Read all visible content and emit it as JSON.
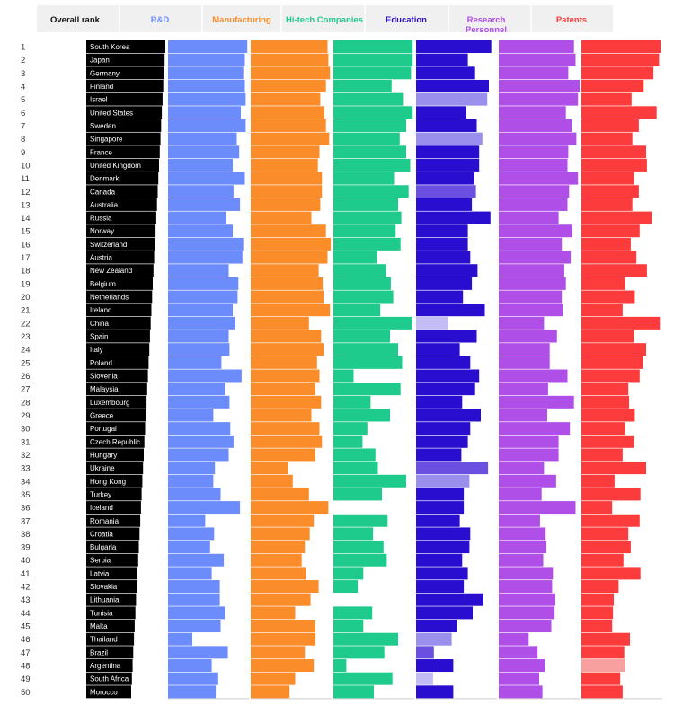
{
  "chart_data": {
    "type": "bar",
    "rank_header": "Overall rank",
    "columns": [
      {
        "key": "rd",
        "label": "R&D",
        "color": "#6b8cfa"
      },
      {
        "key": "mfg",
        "label": "Manufacturing",
        "color": "#fb8c2a"
      },
      {
        "key": "hitech",
        "label": "Hi-tech Companies",
        "color": "#1ecb8c"
      },
      {
        "key": "edu",
        "label": "Education",
        "color": "#2a0ed0"
      },
      {
        "key": "research",
        "label": "Research Personnel",
        "color": "#b04ee8"
      },
      {
        "key": "patents",
        "label": "Patents",
        "color": "#fc3c3c"
      }
    ],
    "faded_colors": {
      "edu": [
        "#9a8fec",
        "#6a4fe0",
        "#c4bcf4"
      ],
      "patents": [
        "#f8a0a0"
      ]
    },
    "countries": [
      {
        "rank": 1,
        "name": "South Korea",
        "rd": 0.98,
        "mfg": 0.95,
        "hitech": 0.98,
        "edu": 0.93,
        "research": 0.93,
        "patents": 0.98,
        "style": {}
      },
      {
        "rank": 2,
        "name": "Japan",
        "rd": 0.95,
        "mfg": 0.96,
        "hitech": 0.98,
        "edu": 0.64,
        "research": 0.95,
        "patents": 0.96,
        "style": {}
      },
      {
        "rank": 3,
        "name": "Germany",
        "rd": 0.93,
        "mfg": 0.98,
        "hitech": 0.96,
        "edu": 0.73,
        "research": 0.86,
        "patents": 0.89,
        "style": {}
      },
      {
        "rank": 4,
        "name": "Finland",
        "rd": 0.95,
        "mfg": 0.93,
        "hitech": 0.72,
        "edu": 0.9,
        "research": 1.0,
        "patents": 0.77,
        "style": {}
      },
      {
        "rank": 5,
        "name": "Israel",
        "rd": 0.96,
        "mfg": 0.86,
        "hitech": 0.86,
        "edu": 0.88,
        "research": 0.98,
        "patents": 0.62,
        "style": {
          "edu": "faded"
        }
      },
      {
        "rank": 6,
        "name": "United States",
        "rd": 0.9,
        "mfg": 0.91,
        "hitech": 0.98,
        "edu": 0.62,
        "research": 0.83,
        "patents": 0.93,
        "style": {}
      },
      {
        "rank": 7,
        "name": "Sweden",
        "rd": 0.96,
        "mfg": 0.93,
        "hitech": 0.9,
        "edu": 0.75,
        "research": 0.9,
        "patents": 0.71,
        "style": {}
      },
      {
        "rank": 8,
        "name": "Singapore",
        "rd": 0.85,
        "mfg": 0.97,
        "hitech": 0.82,
        "edu": 0.82,
        "research": 0.96,
        "patents": 0.63,
        "style": {
          "edu": "faded"
        }
      },
      {
        "rank": 9,
        "name": "France",
        "rd": 0.88,
        "mfg": 0.85,
        "hitech": 0.9,
        "edu": 0.78,
        "research": 0.86,
        "patents": 0.8,
        "style": {}
      },
      {
        "rank": 10,
        "name": "United Kingdom",
        "rd": 0.8,
        "mfg": 0.83,
        "hitech": 0.95,
        "edu": 0.78,
        "research": 0.85,
        "patents": 0.81,
        "style": {}
      },
      {
        "rank": 11,
        "name": "Denmark",
        "rd": 0.95,
        "mfg": 0.88,
        "hitech": 0.75,
        "edu": 0.72,
        "research": 0.98,
        "patents": 0.65,
        "style": {}
      },
      {
        "rank": 12,
        "name": "Canada",
        "rd": 0.81,
        "mfg": 0.88,
        "hitech": 0.93,
        "edu": 0.74,
        "research": 0.87,
        "patents": 0.71,
        "style": {
          "edu": "semi"
        }
      },
      {
        "rank": 13,
        "name": "Australia",
        "rd": 0.89,
        "mfg": 0.86,
        "hitech": 0.8,
        "edu": 0.69,
        "research": 0.85,
        "patents": 0.63,
        "style": {}
      },
      {
        "rank": 14,
        "name": "Russia",
        "rd": 0.72,
        "mfg": 0.75,
        "hitech": 0.84,
        "edu": 0.92,
        "research": 0.74,
        "patents": 0.87,
        "style": {}
      },
      {
        "rank": 15,
        "name": "Norway",
        "rd": 0.8,
        "mfg": 0.93,
        "hitech": 0.77,
        "edu": 0.64,
        "research": 0.91,
        "patents": 0.72,
        "style": {}
      },
      {
        "rank": 16,
        "name": "Switzerland",
        "rd": 0.93,
        "mfg": 0.99,
        "hitech": 0.83,
        "edu": 0.64,
        "research": 0.78,
        "patents": 0.61,
        "style": {}
      },
      {
        "rank": 17,
        "name": "Austria",
        "rd": 0.92,
        "mfg": 0.95,
        "hitech": 0.54,
        "edu": 0.67,
        "research": 0.89,
        "patents": 0.68,
        "style": {}
      },
      {
        "rank": 18,
        "name": "New Zealand",
        "rd": 0.75,
        "mfg": 0.84,
        "hitech": 0.65,
        "edu": 0.76,
        "research": 0.81,
        "patents": 0.81,
        "style": {}
      },
      {
        "rank": 19,
        "name": "Belgium",
        "rd": 0.87,
        "mfg": 0.89,
        "hitech": 0.71,
        "edu": 0.69,
        "research": 0.83,
        "patents": 0.54,
        "style": {}
      },
      {
        "rank": 20,
        "name": "Netherlands",
        "rd": 0.86,
        "mfg": 0.9,
        "hitech": 0.74,
        "edu": 0.58,
        "research": 0.78,
        "patents": 0.66,
        "style": {}
      },
      {
        "rank": 21,
        "name": "Ireland",
        "rd": 0.8,
        "mfg": 0.98,
        "hitech": 0.58,
        "edu": 0.85,
        "research": 0.79,
        "patents": 0.51,
        "style": {}
      },
      {
        "rank": 22,
        "name": "China",
        "rd": 0.83,
        "mfg": 0.72,
        "hitech": 0.97,
        "edu": 0.4,
        "research": 0.56,
        "patents": 0.97,
        "style": {
          "edu": "faint"
        }
      },
      {
        "rank": 23,
        "name": "Spain",
        "rd": 0.75,
        "mfg": 0.87,
        "hitech": 0.7,
        "edu": 0.75,
        "research": 0.72,
        "patents": 0.65,
        "style": {}
      },
      {
        "rank": 24,
        "name": "Italy",
        "rd": 0.76,
        "mfg": 0.9,
        "hitech": 0.8,
        "edu": 0.54,
        "research": 0.63,
        "patents": 0.8,
        "style": {}
      },
      {
        "rank": 25,
        "name": "Poland",
        "rd": 0.66,
        "mfg": 0.82,
        "hitech": 0.85,
        "edu": 0.67,
        "research": 0.63,
        "patents": 0.76,
        "style": {}
      },
      {
        "rank": 26,
        "name": "Slovenia",
        "rd": 0.91,
        "mfg": 0.85,
        "hitech": 0.25,
        "edu": 0.78,
        "research": 0.85,
        "patents": 0.72,
        "style": {}
      },
      {
        "rank": 27,
        "name": "Malaysia",
        "rd": 0.7,
        "mfg": 0.8,
        "hitech": 0.83,
        "edu": 0.73,
        "research": 0.61,
        "patents": 0.58,
        "style": {}
      },
      {
        "rank": 28,
        "name": "Luxembourg",
        "rd": 0.76,
        "mfg": 0.87,
        "hitech": 0.46,
        "edu": 0.57,
        "research": 0.93,
        "patents": 0.59,
        "style": {}
      },
      {
        "rank": 29,
        "name": "Greece",
        "rd": 0.56,
        "mfg": 0.75,
        "hitech": 0.7,
        "edu": 0.8,
        "research": 0.6,
        "patents": 0.66,
        "style": {}
      },
      {
        "rank": 30,
        "name": "Portugal",
        "rd": 0.77,
        "mfg": 0.85,
        "hitech": 0.42,
        "edu": 0.67,
        "research": 0.88,
        "patents": 0.54,
        "style": {}
      },
      {
        "rank": 31,
        "name": "Czech Republic",
        "rd": 0.81,
        "mfg": 0.88,
        "hitech": 0.36,
        "edu": 0.64,
        "research": 0.74,
        "patents": 0.65,
        "style": {}
      },
      {
        "rank": 32,
        "name": "Hungary",
        "rd": 0.75,
        "mfg": 0.8,
        "hitech": 0.52,
        "edu": 0.56,
        "research": 0.74,
        "patents": 0.51,
        "style": {}
      },
      {
        "rank": 33,
        "name": "Ukraine",
        "rd": 0.58,
        "mfg": 0.46,
        "hitech": 0.55,
        "edu": 0.89,
        "research": 0.56,
        "patents": 0.8,
        "style": {
          "edu": "semi"
        }
      },
      {
        "rank": 34,
        "name": "Hong Kong",
        "rd": 0.56,
        "mfg": 0.52,
        "hitech": 0.9,
        "edu": 0.66,
        "research": 0.71,
        "patents": 0.41,
        "style": {
          "edu": "faded"
        }
      },
      {
        "rank": 35,
        "name": "Turkey",
        "rd": 0.65,
        "mfg": 0.72,
        "hitech": 0.6,
        "edu": 0.59,
        "research": 0.53,
        "patents": 0.73,
        "style": {}
      },
      {
        "rank": 36,
        "name": "Iceland",
        "rd": 0.89,
        "mfg": 0.96,
        "hitech": 0.0,
        "edu": 0.59,
        "research": 0.95,
        "patents": 0.38,
        "style": {}
      },
      {
        "rank": 37,
        "name": "Romania",
        "rd": 0.46,
        "mfg": 0.78,
        "hitech": 0.67,
        "edu": 0.54,
        "research": 0.51,
        "patents": 0.72,
        "style": {}
      },
      {
        "rank": 38,
        "name": "Croatia",
        "rd": 0.57,
        "mfg": 0.73,
        "hitech": 0.49,
        "edu": 0.67,
        "research": 0.58,
        "patents": 0.58,
        "style": {}
      },
      {
        "rank": 39,
        "name": "Bulgaria",
        "rd": 0.52,
        "mfg": 0.67,
        "hitech": 0.62,
        "edu": 0.66,
        "research": 0.59,
        "patents": 0.61,
        "style": {}
      },
      {
        "rank": 40,
        "name": "Serbia",
        "rd": 0.69,
        "mfg": 0.63,
        "hitech": 0.66,
        "edu": 0.57,
        "research": 0.55,
        "patents": 0.52,
        "style": {}
      },
      {
        "rank": 41,
        "name": "Latvia",
        "rd": 0.54,
        "mfg": 0.68,
        "hitech": 0.37,
        "edu": 0.64,
        "research": 0.67,
        "patents": 0.73,
        "style": {}
      },
      {
        "rank": 42,
        "name": "Slovakia",
        "rd": 0.64,
        "mfg": 0.84,
        "hitech": 0.3,
        "edu": 0.59,
        "research": 0.66,
        "patents": 0.46,
        "style": {}
      },
      {
        "rank": 43,
        "name": "Lithuania",
        "rd": 0.64,
        "mfg": 0.74,
        "hitech": 0.0,
        "edu": 0.83,
        "research": 0.7,
        "patents": 0.4,
        "style": {}
      },
      {
        "rank": 44,
        "name": "Tunisia",
        "rd": 0.7,
        "mfg": 0.55,
        "hitech": 0.48,
        "edu": 0.7,
        "research": 0.69,
        "patents": 0.39,
        "style": {}
      },
      {
        "rank": 45,
        "name": "Malta",
        "rd": 0.65,
        "mfg": 0.8,
        "hitech": 0.37,
        "edu": 0.5,
        "research": 0.65,
        "patents": 0.38,
        "style": {}
      },
      {
        "rank": 46,
        "name": "Thailand",
        "rd": 0.3,
        "mfg": 0.8,
        "hitech": 0.8,
        "edu": 0.44,
        "research": 0.37,
        "patents": 0.6,
        "style": {
          "edu": "faded"
        }
      },
      {
        "rank": 47,
        "name": "Brazil",
        "rd": 0.74,
        "mfg": 0.67,
        "hitech": 0.63,
        "edu": 0.22,
        "research": 0.48,
        "patents": 0.53,
        "style": {
          "edu": "semi"
        }
      },
      {
        "rank": 48,
        "name": "Argentina",
        "rd": 0.54,
        "mfg": 0.78,
        "hitech": 0.16,
        "edu": 0.46,
        "research": 0.57,
        "patents": 0.54,
        "style": {
          "patents": "faded"
        }
      },
      {
        "rank": 49,
        "name": "South Africa",
        "rd": 0.62,
        "mfg": 0.55,
        "hitech": 0.73,
        "edu": 0.21,
        "research": 0.5,
        "patents": 0.48,
        "style": {
          "edu": "faint"
        }
      },
      {
        "rank": 50,
        "name": "Morocco",
        "rd": 0.59,
        "mfg": 0.48,
        "hitech": 0.5,
        "edu": 0.46,
        "research": 0.54,
        "patents": 0.51,
        "style": {}
      }
    ]
  }
}
